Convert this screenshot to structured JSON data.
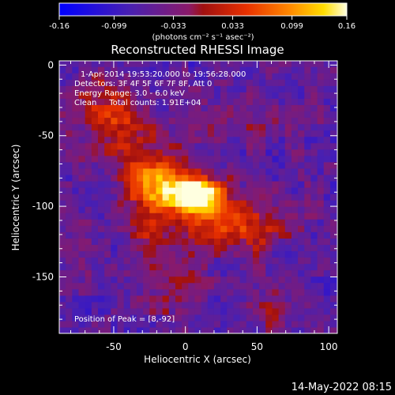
{
  "chart_data": {
    "type": "heatmap",
    "title": "Reconstructed RHESSI Image",
    "xlabel": "Heliocentric X (arcsec)",
    "ylabel": "Heliocentric Y (arcsec)",
    "xlim": [
      -88,
      106
    ],
    "ylim": [
      -190,
      3
    ],
    "xticks": [
      -50,
      0,
      50,
      100
    ],
    "yticks": [
      0,
      -50,
      -100,
      -150
    ],
    "colorbar": {
      "label": "(photons cm⁻² s⁻¹ asec⁻²)",
      "min": -0.16,
      "max": 0.16,
      "ticks": [
        "-0.16",
        "-0.099",
        "-0.033",
        "0.033",
        "0.099",
        "0.16"
      ]
    },
    "annotations": [
      "1-Apr-2014 19:53:20.000 to 19:56:28.000",
      "Detectors: 3F 4F 5F 6F 7F 8F, Att 0",
      "Energy Range: 3.0 - 6.0 keV",
      "Clean     Total counts: 1.91E+04"
    ],
    "peak_label": "Position of Peak = [8,-92]",
    "peak": [
      8,
      -92
    ],
    "sources": [
      {
        "x": 8,
        "y": -92,
        "amp": 0.16,
        "sx": 14,
        "sy": 8
      },
      {
        "x": -8,
        "y": -86,
        "amp": 0.13,
        "sx": 18,
        "sy": 13
      },
      {
        "x": -28,
        "y": -80,
        "amp": 0.08,
        "sx": 14,
        "sy": 20
      },
      {
        "x": -52,
        "y": -40,
        "amp": 0.075,
        "sx": 18,
        "sy": 14
      },
      {
        "x": -60,
        "y": -18,
        "amp": 0.055,
        "sx": 16,
        "sy": 10
      },
      {
        "x": 20,
        "y": -110,
        "amp": 0.08,
        "sx": 20,
        "sy": 14
      },
      {
        "x": 50,
        "y": -115,
        "amp": 0.06,
        "sx": 16,
        "sy": 12
      },
      {
        "x": -25,
        "y": -125,
        "amp": 0.06,
        "sx": 10,
        "sy": 14
      },
      {
        "x": 40,
        "y": -35,
        "amp": 0.035,
        "sx": 22,
        "sy": 12
      },
      {
        "x": 60,
        "y": -175,
        "amp": 0.05,
        "sx": 14,
        "sy": 10
      },
      {
        "x": -5,
        "y": -160,
        "amp": 0.045,
        "sx": 12,
        "sy": 14
      }
    ],
    "baseline": -0.06
  },
  "footer": {
    "timestamp": "14-May-2022 08:15"
  }
}
